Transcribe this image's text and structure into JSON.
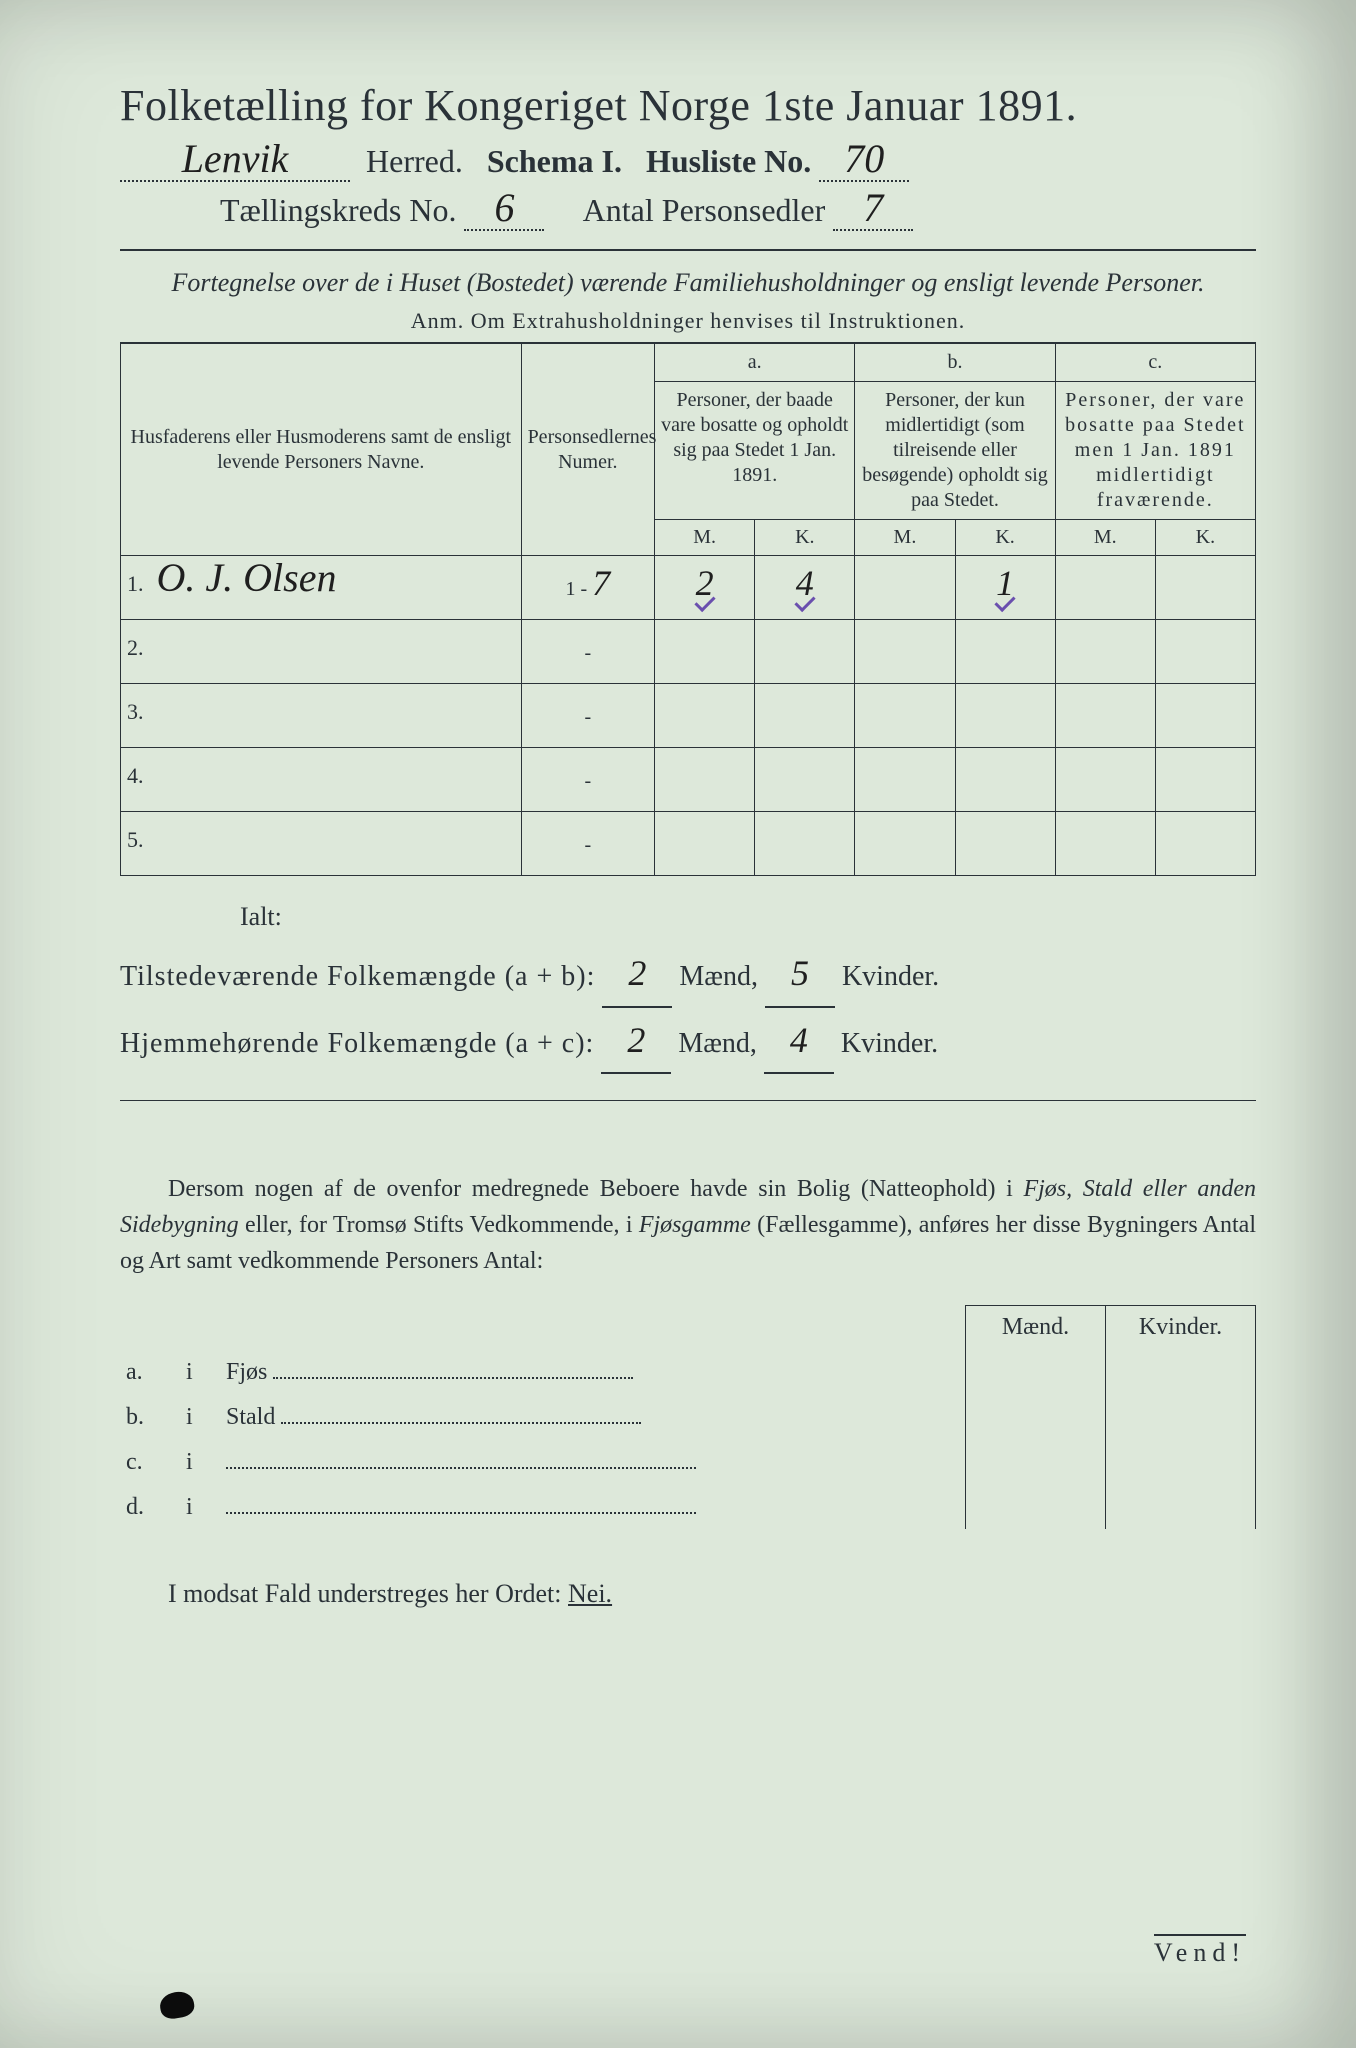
{
  "colors": {
    "paper": "#dde8da",
    "ink": "#2a3238",
    "handwriting": "#1f1f1f",
    "tick": "#6a4fae",
    "page_bg": "#1a1a1a"
  },
  "typography": {
    "title_fontsize_pt": 33,
    "subhead_fontsize_pt": 24,
    "body_fontsize_pt": 18,
    "hand_fontsize_pt": 30,
    "font_family_print": "Georgia / Times",
    "font_family_hand": "cursive"
  },
  "header": {
    "title": "Folketælling for Kongeriget Norge 1ste Januar 1891.",
    "herred_value": "Lenvik",
    "herred_label": "Herred.",
    "schema_label": "Schema I.",
    "husliste_label": "Husliste No.",
    "husliste_no": "70",
    "kreds_label": "Tællingskreds No.",
    "kreds_no": "6",
    "personsedler_label": "Antal Personsedler",
    "personsedler_no": "7"
  },
  "intro": {
    "line": "Fortegnelse over de i Huset (Bostedet) værende Familiehusholdninger og ensligt levende Personer.",
    "anm": "Anm.  Om Extrahusholdninger henvises til Instruktionen."
  },
  "table": {
    "col_name": "Husfaderens eller Husmoderens samt de ensligt levende Personers Navne.",
    "col_num": "Personsedlernes Numer.",
    "col_a_hdr": "a.",
    "col_a": "Personer, der baade vare bosatte og opholdt sig paa Stedet 1 Jan. 1891.",
    "col_b_hdr": "b.",
    "col_b": "Personer, der kun midlertidigt (som tilreisende eller besøgende) opholdt sig paa Stedet.",
    "col_c_hdr": "c.",
    "col_c": "Personer, der vare bosatte paa Stedet men 1 Jan. 1891 midlertidigt fraværende.",
    "m": "M.",
    "k": "K.",
    "rows": [
      {
        "n": "1.",
        "name": "O. J. Olsen",
        "num_prefix": "1 -",
        "num": "7",
        "a_m": "2",
        "a_k": "4",
        "b_m": "",
        "b_k": "1",
        "c_m": "",
        "c_k": ""
      },
      {
        "n": "2.",
        "name": "",
        "num_prefix": "-",
        "num": "",
        "a_m": "",
        "a_k": "",
        "b_m": "",
        "b_k": "",
        "c_m": "",
        "c_k": ""
      },
      {
        "n": "3.",
        "name": "",
        "num_prefix": "-",
        "num": "",
        "a_m": "",
        "a_k": "",
        "b_m": "",
        "b_k": "",
        "c_m": "",
        "c_k": ""
      },
      {
        "n": "4.",
        "name": "",
        "num_prefix": "-",
        "num": "",
        "a_m": "",
        "a_k": "",
        "b_m": "",
        "b_k": "",
        "c_m": "",
        "c_k": ""
      },
      {
        "n": "5.",
        "name": "",
        "num_prefix": "-",
        "num": "",
        "a_m": "",
        "a_k": "",
        "b_m": "",
        "b_k": "",
        "c_m": "",
        "c_k": ""
      }
    ]
  },
  "totals": {
    "ialt": "Ialt:",
    "tilstede_label": "Tilstedeværende Folkemængde (a + b):",
    "hjemme_label": "Hjemmehørende Folkemængde (a + c):",
    "maend": "Mænd,",
    "kvinder": "Kvinder.",
    "tilstede_m": "2",
    "tilstede_k": "5",
    "hjemme_m": "2",
    "hjemme_k": "4"
  },
  "para": {
    "text1": "Dersom nogen af de ovenfor medregnede Beboere havde sin Bolig (Natteophold) i ",
    "it1": "Fjøs, Stald eller anden Sidebygning",
    "text2": " eller, for Tromsø Stifts Vedkommende, i ",
    "it2": "Fjøsgamme",
    "text3": " (Fællesgamme), anføres her disse Bygningers Antal og Art samt vedkommende Personers Antal:"
  },
  "lower": {
    "maend": "Mænd.",
    "kvinder": "Kvinder.",
    "rows": [
      {
        "letter": "a.",
        "i": "i",
        "label": "Fjøs"
      },
      {
        "letter": "b.",
        "i": "i",
        "label": "Stald"
      },
      {
        "letter": "c.",
        "i": "i",
        "label": ""
      },
      {
        "letter": "d.",
        "i": "i",
        "label": ""
      }
    ]
  },
  "nei": {
    "text_pre": "I modsat Fald understreges her Ordet: ",
    "nei": "Nei."
  },
  "footer": {
    "vend": "Vend!"
  }
}
